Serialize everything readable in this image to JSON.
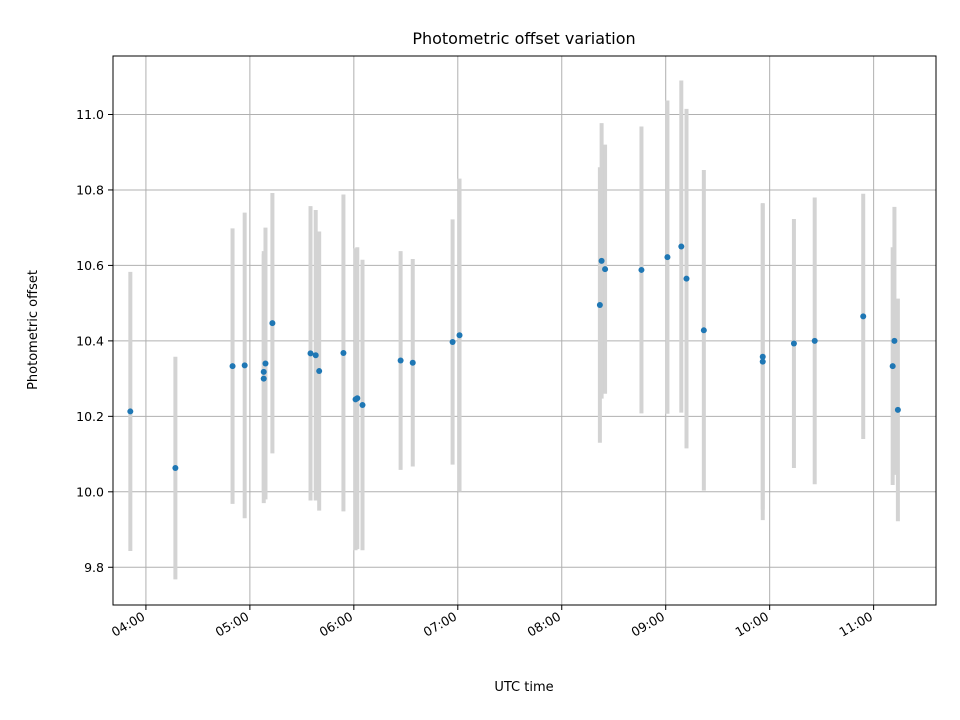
{
  "chart_data": {
    "type": "scatter",
    "title": "Photometric offset variation",
    "xlabel": "UTC time",
    "ylabel": "Photometric offset",
    "x_ticks": [
      "04:00",
      "05:00",
      "06:00",
      "07:00",
      "08:00",
      "09:00",
      "10:00",
      "11:00"
    ],
    "y_ticks": [
      "9.8",
      "10.0",
      "10.2",
      "10.4",
      "10.6",
      "10.8",
      "11.0"
    ],
    "xlim": [
      "03:41",
      "11:36"
    ],
    "ylim": [
      9.7,
      11.155
    ],
    "grid": true,
    "colors": {
      "point": "#1f77b4",
      "errorbar": "#d3d3d3",
      "grid": "#b0b0b0"
    },
    "points": [
      {
        "t": "03:51",
        "y": 10.213,
        "err": 0.37
      },
      {
        "t": "04:17",
        "y": 10.063,
        "err": 0.295
      },
      {
        "t": "04:50",
        "y": 10.333,
        "err": 0.365
      },
      {
        "t": "04:57",
        "y": 10.335,
        "err": 0.405
      },
      {
        "t": "05:08",
        "y": 10.3,
        "err": 0.33
      },
      {
        "t": "05:08",
        "y": 10.318,
        "err": 0.32
      },
      {
        "t": "05:09",
        "y": 10.34,
        "err": 0.36
      },
      {
        "t": "05:13",
        "y": 10.447,
        "err": 0.345
      },
      {
        "t": "05:35",
        "y": 10.367,
        "err": 0.39
      },
      {
        "t": "05:38",
        "y": 10.362,
        "err": 0.385
      },
      {
        "t": "05:40",
        "y": 10.32,
        "err": 0.37
      },
      {
        "t": "05:54",
        "y": 10.368,
        "err": 0.42
      },
      {
        "t": "06:01",
        "y": 10.245,
        "err": 0.4
      },
      {
        "t": "06:02",
        "y": 10.248,
        "err": 0.4
      },
      {
        "t": "06:05",
        "y": 10.23,
        "err": 0.385
      },
      {
        "t": "06:27",
        "y": 10.348,
        "err": 0.29
      },
      {
        "t": "06:34",
        "y": 10.342,
        "err": 0.275
      },
      {
        "t": "06:57",
        "y": 10.397,
        "err": 0.325
      },
      {
        "t": "07:01",
        "y": 10.415,
        "err": 0.415
      },
      {
        "t": "08:22",
        "y": 10.495,
        "err": 0.365
      },
      {
        "t": "08:23",
        "y": 10.612,
        "err": 0.365
      },
      {
        "t": "08:25",
        "y": 10.59,
        "err": 0.33
      },
      {
        "t": "08:46",
        "y": 10.588,
        "err": 0.38
      },
      {
        "t": "09:01",
        "y": 10.622,
        "err": 0.415
      },
      {
        "t": "09:09",
        "y": 10.65,
        "err": 0.44
      },
      {
        "t": "09:12",
        "y": 10.565,
        "err": 0.45
      },
      {
        "t": "09:22",
        "y": 10.428,
        "err": 0.425
      },
      {
        "t": "09:56",
        "y": 10.345,
        "err": 0.42
      },
      {
        "t": "09:56",
        "y": 10.358,
        "err": 0.405
      },
      {
        "t": "10:14",
        "y": 10.393,
        "err": 0.33
      },
      {
        "t": "10:26",
        "y": 10.4,
        "err": 0.38
      },
      {
        "t": "10:54",
        "y": 10.465,
        "err": 0.325
      },
      {
        "t": "11:11",
        "y": 10.333,
        "err": 0.315
      },
      {
        "t": "11:12",
        "y": 10.4,
        "err": 0.355
      },
      {
        "t": "11:14",
        "y": 10.217,
        "err": 0.295
      }
    ]
  }
}
